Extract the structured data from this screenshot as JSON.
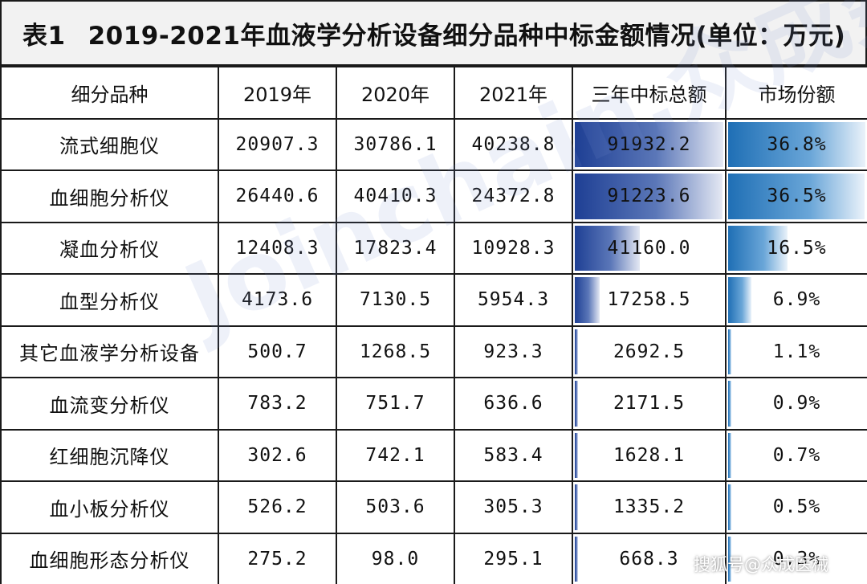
{
  "title": {
    "label": "表1",
    "text": "2019-2021年血液学分析设备细分品种中标金额情况(单位：万元)"
  },
  "headers": [
    "细分品种",
    "2019年",
    "2020年",
    "2021年",
    "三年中标总额",
    "市场份额"
  ],
  "rows": [
    {
      "name": "流式细胞仪",
      "y2019": "20907.3",
      "y2020": "30786.1",
      "y2021": "40238.8",
      "total": "91932.2",
      "share": "36.8%",
      "total_value": 91932.2,
      "share_value": 36.8
    },
    {
      "name": "血细胞分析仪",
      "y2019": "26440.6",
      "y2020": "40410.3",
      "y2021": "24372.8",
      "total": "91223.6",
      "share": "36.5%",
      "total_value": 91223.6,
      "share_value": 36.5
    },
    {
      "name": "凝血分析仪",
      "y2019": "12408.3",
      "y2020": "17823.4",
      "y2021": "10928.3",
      "total": "41160.0",
      "share": "16.5%",
      "total_value": 41160.0,
      "share_value": 16.5
    },
    {
      "name": "血型分析仪",
      "y2019": "4173.6",
      "y2020": "7130.5",
      "y2021": "5954.3",
      "total": "17258.5",
      "share": "6.9%",
      "total_value": 17258.5,
      "share_value": 6.9
    },
    {
      "name": "其它血液学分析设备",
      "y2019": "500.7",
      "y2020": "1268.5",
      "y2021": "923.3",
      "total": "2692.5",
      "share": "1.1%",
      "total_value": 2692.5,
      "share_value": 1.1
    },
    {
      "name": "血流变分析仪",
      "y2019": "783.2",
      "y2020": "751.7",
      "y2021": "636.6",
      "total": "2171.5",
      "share": "0.9%",
      "total_value": 2171.5,
      "share_value": 0.9
    },
    {
      "name": "红细胞沉降仪",
      "y2019": "302.6",
      "y2020": "742.1",
      "y2021": "583.4",
      "total": "1628.1",
      "share": "0.7%",
      "total_value": 1628.1,
      "share_value": 0.7
    },
    {
      "name": "血小板分析仪",
      "y2019": "526.2",
      "y2020": "503.6",
      "y2021": "305.3",
      "total": "1335.2",
      "share": "0.5%",
      "total_value": 1335.2,
      "share_value": 0.5
    },
    {
      "name": "血细胞形态分析仪",
      "y2019": "275.2",
      "y2020": "98.0",
      "y2021": "295.1",
      "total": "668.3",
      "share": "0.3%",
      "total_value": 668.3,
      "share_value": 0.3
    }
  ],
  "watermark": "Joinchain.众成数科",
  "credit": "搜狐号@众成医械",
  "colors": {
    "total_bar": "#1e3f94",
    "share_bar": "#1f6fb5",
    "title_bg": "#f2f2f2",
    "border": "#1a1a1a"
  }
}
